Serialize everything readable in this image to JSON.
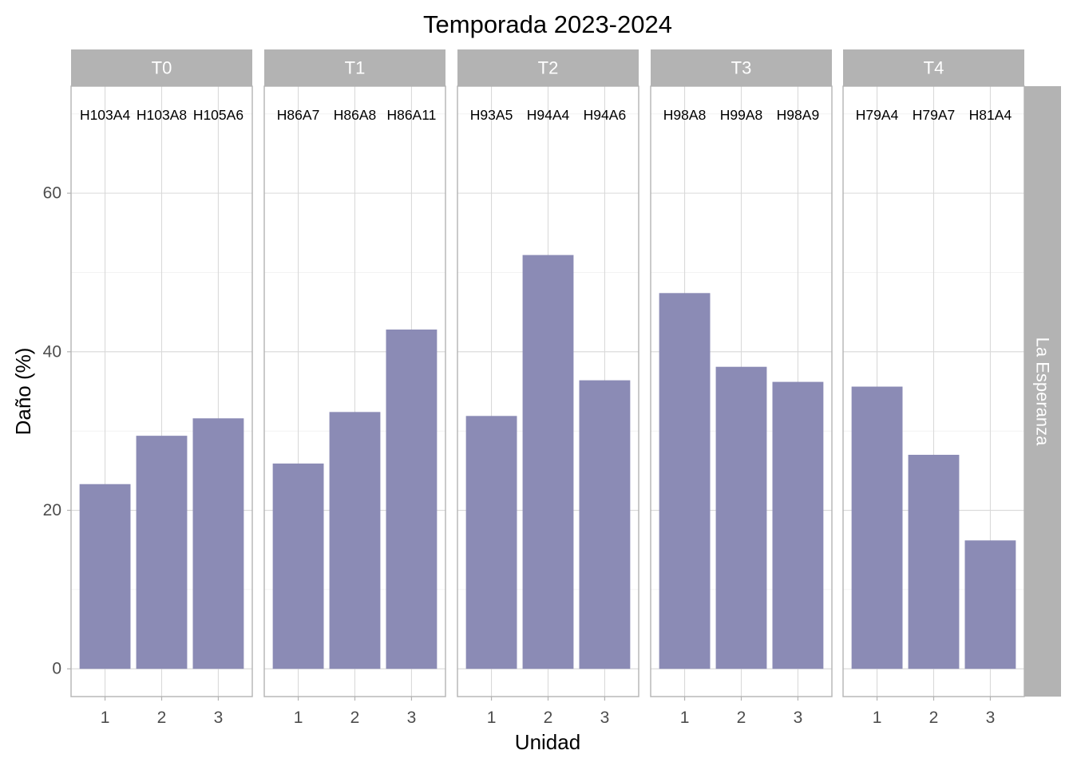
{
  "chart_data": {
    "type": "bar",
    "title": "Temporada 2023-2024",
    "xlabel": "Unidad",
    "ylabel": "Daño (%)",
    "ylim": [
      -3.5,
      73.5
    ],
    "yticks": [
      0,
      20,
      40,
      60
    ],
    "xticks": [
      "1",
      "2",
      "3"
    ],
    "row_facet": "La Esperanza",
    "bar_color": "#8b8bb5",
    "strip_color": "#b3b3b3",
    "grid": true,
    "panels": [
      {
        "name": "T0",
        "categories": [
          "1",
          "2",
          "3"
        ],
        "labels": [
          "H103A4",
          "H103A8",
          "H105A6"
        ],
        "values": [
          23.3,
          29.4,
          31.6
        ]
      },
      {
        "name": "T1",
        "categories": [
          "1",
          "2",
          "3"
        ],
        "labels": [
          "H86A7",
          "H86A8",
          "H86A11"
        ],
        "values": [
          25.9,
          32.4,
          42.8
        ]
      },
      {
        "name": "T2",
        "categories": [
          "1",
          "2",
          "3"
        ],
        "labels": [
          "H93A5",
          "H94A4",
          "H94A6"
        ],
        "values": [
          31.9,
          52.2,
          36.4
        ]
      },
      {
        "name": "T3",
        "categories": [
          "1",
          "2",
          "3"
        ],
        "labels": [
          "H98A8",
          "H99A8",
          "H98A9"
        ],
        "values": [
          47.4,
          38.1,
          36.2
        ]
      },
      {
        "name": "T4",
        "categories": [
          "1",
          "2",
          "3"
        ],
        "labels": [
          "H79A4",
          "H79A7",
          "H81A4"
        ],
        "values": [
          35.6,
          27.0,
          16.2
        ]
      }
    ]
  }
}
